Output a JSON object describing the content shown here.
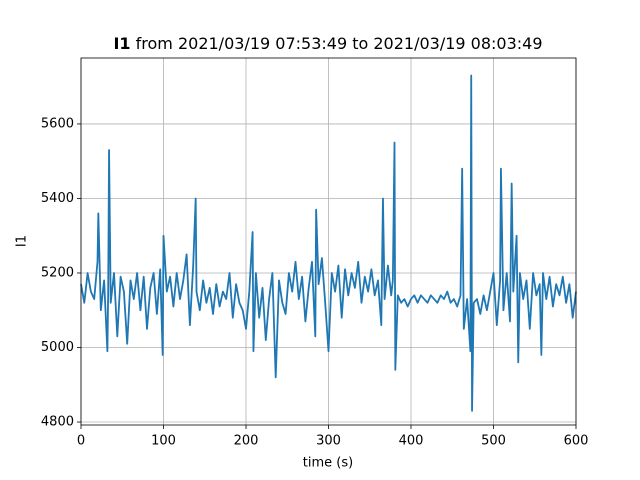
{
  "chart_data": {
    "type": "line",
    "title_var": "I1",
    "title": "from 2021/03/19 07:53:49 to 2021/03/19 08:03:49",
    "x_label": "time (s)",
    "y_label": "I1",
    "color": "#1f77b4",
    "grid": true,
    "xlim": [
      0,
      600
    ],
    "xticks": [
      0,
      100,
      200,
      300,
      400,
      500,
      600
    ],
    "ylim": [
      4792,
      5777
    ],
    "yticks": [
      4800,
      5000,
      5200,
      5400,
      5600
    ],
    "x": [
      0,
      4,
      8,
      12,
      16,
      20,
      21,
      24,
      28,
      32,
      33,
      34,
      36,
      40,
      44,
      48,
      52,
      56,
      60,
      64,
      68,
      72,
      76,
      80,
      84,
      88,
      92,
      96,
      99,
      100,
      104,
      108,
      112,
      116,
      120,
      124,
      128,
      132,
      136,
      139,
      140,
      144,
      148,
      152,
      156,
      160,
      164,
      168,
      172,
      176,
      180,
      184,
      188,
      192,
      196,
      200,
      204,
      208,
      209,
      212,
      216,
      220,
      224,
      228,
      232,
      236,
      240,
      244,
      248,
      252,
      256,
      260,
      264,
      268,
      272,
      276,
      280,
      284,
      285,
      288,
      292,
      296,
      300,
      304,
      308,
      312,
      316,
      320,
      324,
      328,
      332,
      336,
      340,
      344,
      348,
      352,
      356,
      360,
      364,
      366,
      368,
      372,
      376,
      378,
      380,
      381,
      384,
      388,
      392,
      396,
      400,
      404,
      408,
      412,
      416,
      420,
      424,
      428,
      432,
      436,
      440,
      444,
      448,
      452,
      456,
      460,
      462,
      464,
      468,
      472,
      473,
      474,
      476,
      480,
      484,
      488,
      492,
      496,
      500,
      504,
      508,
      509,
      512,
      516,
      520,
      522,
      524,
      528,
      530,
      532,
      536,
      540,
      544,
      548,
      552,
      556,
      558,
      560,
      564,
      568,
      572,
      576,
      580,
      584,
      588,
      592,
      596,
      600
    ],
    "values": [
      5170,
      5120,
      5200,
      5150,
      5130,
      5230,
      5360,
      5100,
      5180,
      4990,
      5160,
      5530,
      5120,
      5200,
      5030,
      5190,
      5150,
      5010,
      5180,
      5130,
      5200,
      5100,
      5190,
      5050,
      5160,
      5200,
      5090,
      5210,
      4980,
      5300,
      5150,
      5190,
      5110,
      5200,
      5130,
      5180,
      5250,
      5060,
      5220,
      5400,
      5150,
      5100,
      5180,
      5120,
      5160,
      5090,
      5170,
      5110,
      5150,
      5130,
      5200,
      5080,
      5170,
      5120,
      5100,
      5050,
      5150,
      5310,
      4990,
      5200,
      5080,
      5160,
      5020,
      5130,
      5200,
      4920,
      5180,
      5120,
      5090,
      5200,
      5150,
      5230,
      5130,
      5190,
      5070,
      5160,
      5230,
      5030,
      5370,
      5170,
      5240,
      5120,
      4990,
      5200,
      5150,
      5220,
      5080,
      5210,
      5140,
      5200,
      5160,
      5230,
      5120,
      5190,
      5150,
      5210,
      5140,
      5180,
      5060,
      5400,
      5130,
      5220,
      5140,
      5180,
      5550,
      4940,
      5140,
      5120,
      5130,
      5110,
      5130,
      5140,
      5120,
      5140,
      5130,
      5120,
      5140,
      5130,
      5120,
      5140,
      5130,
      5150,
      5120,
      5130,
      5110,
      5140,
      5480,
      5050,
      5130,
      4990,
      5730,
      4830,
      5120,
      5130,
      5090,
      5140,
      5100,
      5150,
      5200,
      5060,
      5180,
      5480,
      5100,
      5200,
      5070,
      5440,
      5150,
      5300,
      4960,
      5200,
      5130,
      5180,
      5050,
      5200,
      5140,
      5170,
      4980,
      5200,
      5130,
      5190,
      5110,
      5170,
      5140,
      5190,
      5120,
      5170,
      5080,
      5150
    ]
  }
}
